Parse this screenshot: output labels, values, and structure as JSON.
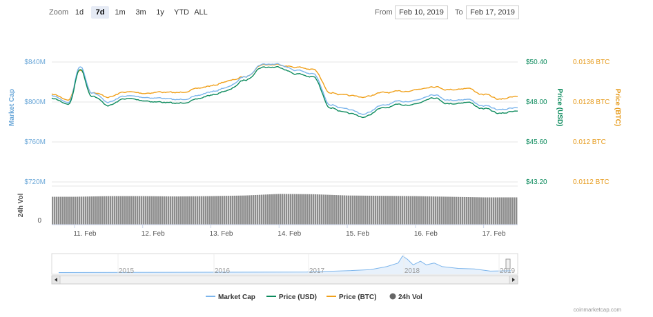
{
  "toolbar": {
    "zoom_label": "Zoom",
    "zoom_buttons": [
      "1d",
      "7d",
      "1m",
      "3m",
      "1y",
      "YTD",
      "ALL"
    ],
    "active_zoom": "7d",
    "from_label": "From",
    "from_value": "Feb 10, 2019",
    "to_label": "To",
    "to_value": "Feb 17, 2019"
  },
  "axes": {
    "left_title": "Market Cap",
    "left_ticks": [
      "$840M",
      "$800M",
      "$760M",
      "$720M"
    ],
    "usd_title": "Price (USD)",
    "usd_ticks": [
      "$50.40",
      "$48.00",
      "$45.60",
      "$43.20"
    ],
    "btc_title": "Price (BTC)",
    "btc_ticks": [
      "0.0136 BTC",
      "0.0128 BTC",
      "0.012 BTC",
      "0.0112 BTC"
    ],
    "vol_title": "24h Vol",
    "vol_tick": "0",
    "x_ticks": [
      "11. Feb",
      "12. Feb",
      "13. Feb",
      "14. Feb",
      "15. Feb",
      "16. Feb",
      "17. Feb"
    ]
  },
  "navigator": {
    "years": [
      "2015",
      "2016",
      "2017",
      "2018",
      "2019"
    ]
  },
  "legend": [
    "Market Cap",
    "Price (USD)",
    "Price (BTC)",
    "24h Vol"
  ],
  "credit": "coinmarketcap.com",
  "colors": {
    "market_cap": "#7cb5ec",
    "price_usd": "#0b8a5c",
    "price_btc": "#f0a01a",
    "volume": "#8c8c8c",
    "grid": "#e6e6e6",
    "left_axis_text": "#6aa7d8",
    "usd_axis_text": "#0b8a5c",
    "btc_axis_text": "#e69a1a"
  },
  "chart_data": {
    "type": "line",
    "x_range": [
      "2019-02-10T16:00",
      "2019-02-17T12:00"
    ],
    "x_ticks": [
      "2019-02-11",
      "2019-02-12",
      "2019-02-13",
      "2019-02-14",
      "2019-02-15",
      "2019-02-16",
      "2019-02-17"
    ],
    "y_axes": {
      "market_cap_usd_millions": {
        "ticks": [
          720,
          760,
          800,
          840
        ]
      },
      "price_usd": {
        "ticks": [
          43.2,
          45.6,
          48.0,
          50.4
        ]
      },
      "price_btc": {
        "ticks": [
          0.0112,
          0.012,
          0.0128,
          0.0136
        ]
      }
    },
    "series": [
      {
        "name": "Market Cap",
        "axis": "market_cap_usd_millions",
        "points": [
          [
            "2019-02-10T16:00",
            806
          ],
          [
            "2019-02-10T22:00",
            800
          ],
          [
            "2019-02-11T02:00",
            836
          ],
          [
            "2019-02-11T06:00",
            810
          ],
          [
            "2019-02-11T12:00",
            800
          ],
          [
            "2019-02-11T18:00",
            806
          ],
          [
            "2019-02-12T00:00",
            805
          ],
          [
            "2019-02-12T06:00",
            804
          ],
          [
            "2019-02-12T12:00",
            802
          ],
          [
            "2019-02-12T18:00",
            805
          ],
          [
            "2019-02-13T00:00",
            810
          ],
          [
            "2019-02-13T06:00",
            815
          ],
          [
            "2019-02-13T12:00",
            825
          ],
          [
            "2019-02-13T18:00",
            838
          ],
          [
            "2019-02-14T00:00",
            838
          ],
          [
            "2019-02-14T06:00",
            832
          ],
          [
            "2019-02-14T12:00",
            828
          ],
          [
            "2019-02-14T18:00",
            798
          ],
          [
            "2019-02-15T00:00",
            792
          ],
          [
            "2019-02-15T06:00",
            788
          ],
          [
            "2019-02-15T12:00",
            796
          ],
          [
            "2019-02-15T18:00",
            800
          ],
          [
            "2019-02-16T00:00",
            802
          ],
          [
            "2019-02-16T06:00",
            808
          ],
          [
            "2019-02-16T12:00",
            802
          ],
          [
            "2019-02-16T18:00",
            803
          ],
          [
            "2019-02-17T00:00",
            796
          ],
          [
            "2019-02-17T06:00",
            792
          ],
          [
            "2019-02-17T12:00",
            795
          ]
        ]
      },
      {
        "name": "Price (USD)",
        "axis": "price_usd",
        "points": [
          [
            "2019-02-10T16:00",
            48.2
          ],
          [
            "2019-02-10T22:00",
            47.9
          ],
          [
            "2019-02-11T02:00",
            50.0
          ],
          [
            "2019-02-11T06:00",
            48.4
          ],
          [
            "2019-02-11T12:00",
            47.8
          ],
          [
            "2019-02-11T18:00",
            48.2
          ],
          [
            "2019-02-12T00:00",
            48.1
          ],
          [
            "2019-02-12T06:00",
            48.0
          ],
          [
            "2019-02-12T12:00",
            47.9
          ],
          [
            "2019-02-12T18:00",
            48.1
          ],
          [
            "2019-02-13T00:00",
            48.4
          ],
          [
            "2019-02-13T06:00",
            48.7
          ],
          [
            "2019-02-13T12:00",
            49.3
          ],
          [
            "2019-02-13T18:00",
            50.1
          ],
          [
            "2019-02-14T00:00",
            50.1
          ],
          [
            "2019-02-14T06:00",
            49.7
          ],
          [
            "2019-02-14T12:00",
            49.5
          ],
          [
            "2019-02-14T18:00",
            47.7
          ],
          [
            "2019-02-15T00:00",
            47.3
          ],
          [
            "2019-02-15T06:00",
            47.1
          ],
          [
            "2019-02-15T12:00",
            47.6
          ],
          [
            "2019-02-15T18:00",
            47.8
          ],
          [
            "2019-02-16T00:00",
            47.9
          ],
          [
            "2019-02-16T06:00",
            48.3
          ],
          [
            "2019-02-16T12:00",
            47.9
          ],
          [
            "2019-02-16T18:00",
            48.0
          ],
          [
            "2019-02-17T00:00",
            47.6
          ],
          [
            "2019-02-17T06:00",
            47.3
          ],
          [
            "2019-02-17T12:00",
            47.5
          ]
        ]
      },
      {
        "name": "Price (BTC)",
        "axis": "price_btc",
        "points": [
          [
            "2019-02-10T16:00",
            0.01295
          ],
          [
            "2019-02-10T22:00",
            0.01285
          ],
          [
            "2019-02-11T02:00",
            0.01345
          ],
          [
            "2019-02-11T06:00",
            0.013
          ],
          [
            "2019-02-11T12:00",
            0.0129
          ],
          [
            "2019-02-11T18:00",
            0.013
          ],
          [
            "2019-02-12T00:00",
            0.01298
          ],
          [
            "2019-02-12T06:00",
            0.013
          ],
          [
            "2019-02-12T12:00",
            0.01298
          ],
          [
            "2019-02-12T18:00",
            0.01305
          ],
          [
            "2019-02-13T00:00",
            0.01312
          ],
          [
            "2019-02-13T06:00",
            0.01322
          ],
          [
            "2019-02-13T12:00",
            0.0133
          ],
          [
            "2019-02-13T18:00",
            0.01355
          ],
          [
            "2019-02-14T00:00",
            0.01355
          ],
          [
            "2019-02-14T06:00",
            0.0135
          ],
          [
            "2019-02-14T12:00",
            0.01345
          ],
          [
            "2019-02-14T18:00",
            0.013
          ],
          [
            "2019-02-15T00:00",
            0.01292
          ],
          [
            "2019-02-15T06:00",
            0.0129
          ],
          [
            "2019-02-15T12:00",
            0.01298
          ],
          [
            "2019-02-15T18:00",
            0.013
          ],
          [
            "2019-02-16T00:00",
            0.01305
          ],
          [
            "2019-02-16T06:00",
            0.01312
          ],
          [
            "2019-02-16T12:00",
            0.01305
          ],
          [
            "2019-02-16T18:00",
            0.01308
          ],
          [
            "2019-02-17T00:00",
            0.01295
          ],
          [
            "2019-02-17T06:00",
            0.01285
          ],
          [
            "2019-02-17T12:00",
            0.01293
          ]
        ]
      },
      {
        "name": "24h Vol",
        "type": "bar",
        "points": [
          [
            "2019-02-10T16:00",
            0.88
          ],
          [
            "2019-02-11T00:00",
            0.88
          ],
          [
            "2019-02-11T12:00",
            0.9
          ],
          [
            "2019-02-12T00:00",
            0.9
          ],
          [
            "2019-02-12T12:00",
            0.89
          ],
          [
            "2019-02-13T00:00",
            0.9
          ],
          [
            "2019-02-13T12:00",
            0.92
          ],
          [
            "2019-02-14T00:00",
            0.97
          ],
          [
            "2019-02-14T12:00",
            0.96
          ],
          [
            "2019-02-15T00:00",
            0.92
          ],
          [
            "2019-02-15T12:00",
            0.91
          ],
          [
            "2019-02-16T00:00",
            0.9
          ],
          [
            "2019-02-16T12:00",
            0.88
          ],
          [
            "2019-02-17T00:00",
            0.86
          ],
          [
            "2019-02-17T12:00",
            0.86
          ]
        ]
      }
    ],
    "navigator": {
      "x_range": [
        "2014-06-01",
        "2019-02-17"
      ],
      "points": [
        [
          "2014-06-01",
          0.02
        ],
        [
          "2017-01-01",
          0.05
        ],
        [
          "2017-06-01",
          0.12
        ],
        [
          "2017-09-01",
          0.18
        ],
        [
          "2017-11-01",
          0.35
        ],
        [
          "2017-12-15",
          0.55
        ],
        [
          "2018-01-01",
          0.95
        ],
        [
          "2018-01-20",
          0.75
        ],
        [
          "2018-02-10",
          0.45
        ],
        [
          "2018-03-10",
          0.65
        ],
        [
          "2018-04-01",
          0.45
        ],
        [
          "2018-05-01",
          0.55
        ],
        [
          "2018-06-01",
          0.35
        ],
        [
          "2018-08-01",
          0.25
        ],
        [
          "2018-10-01",
          0.22
        ],
        [
          "2018-12-01",
          0.1
        ],
        [
          "2019-02-17",
          0.12
        ]
      ]
    }
  }
}
